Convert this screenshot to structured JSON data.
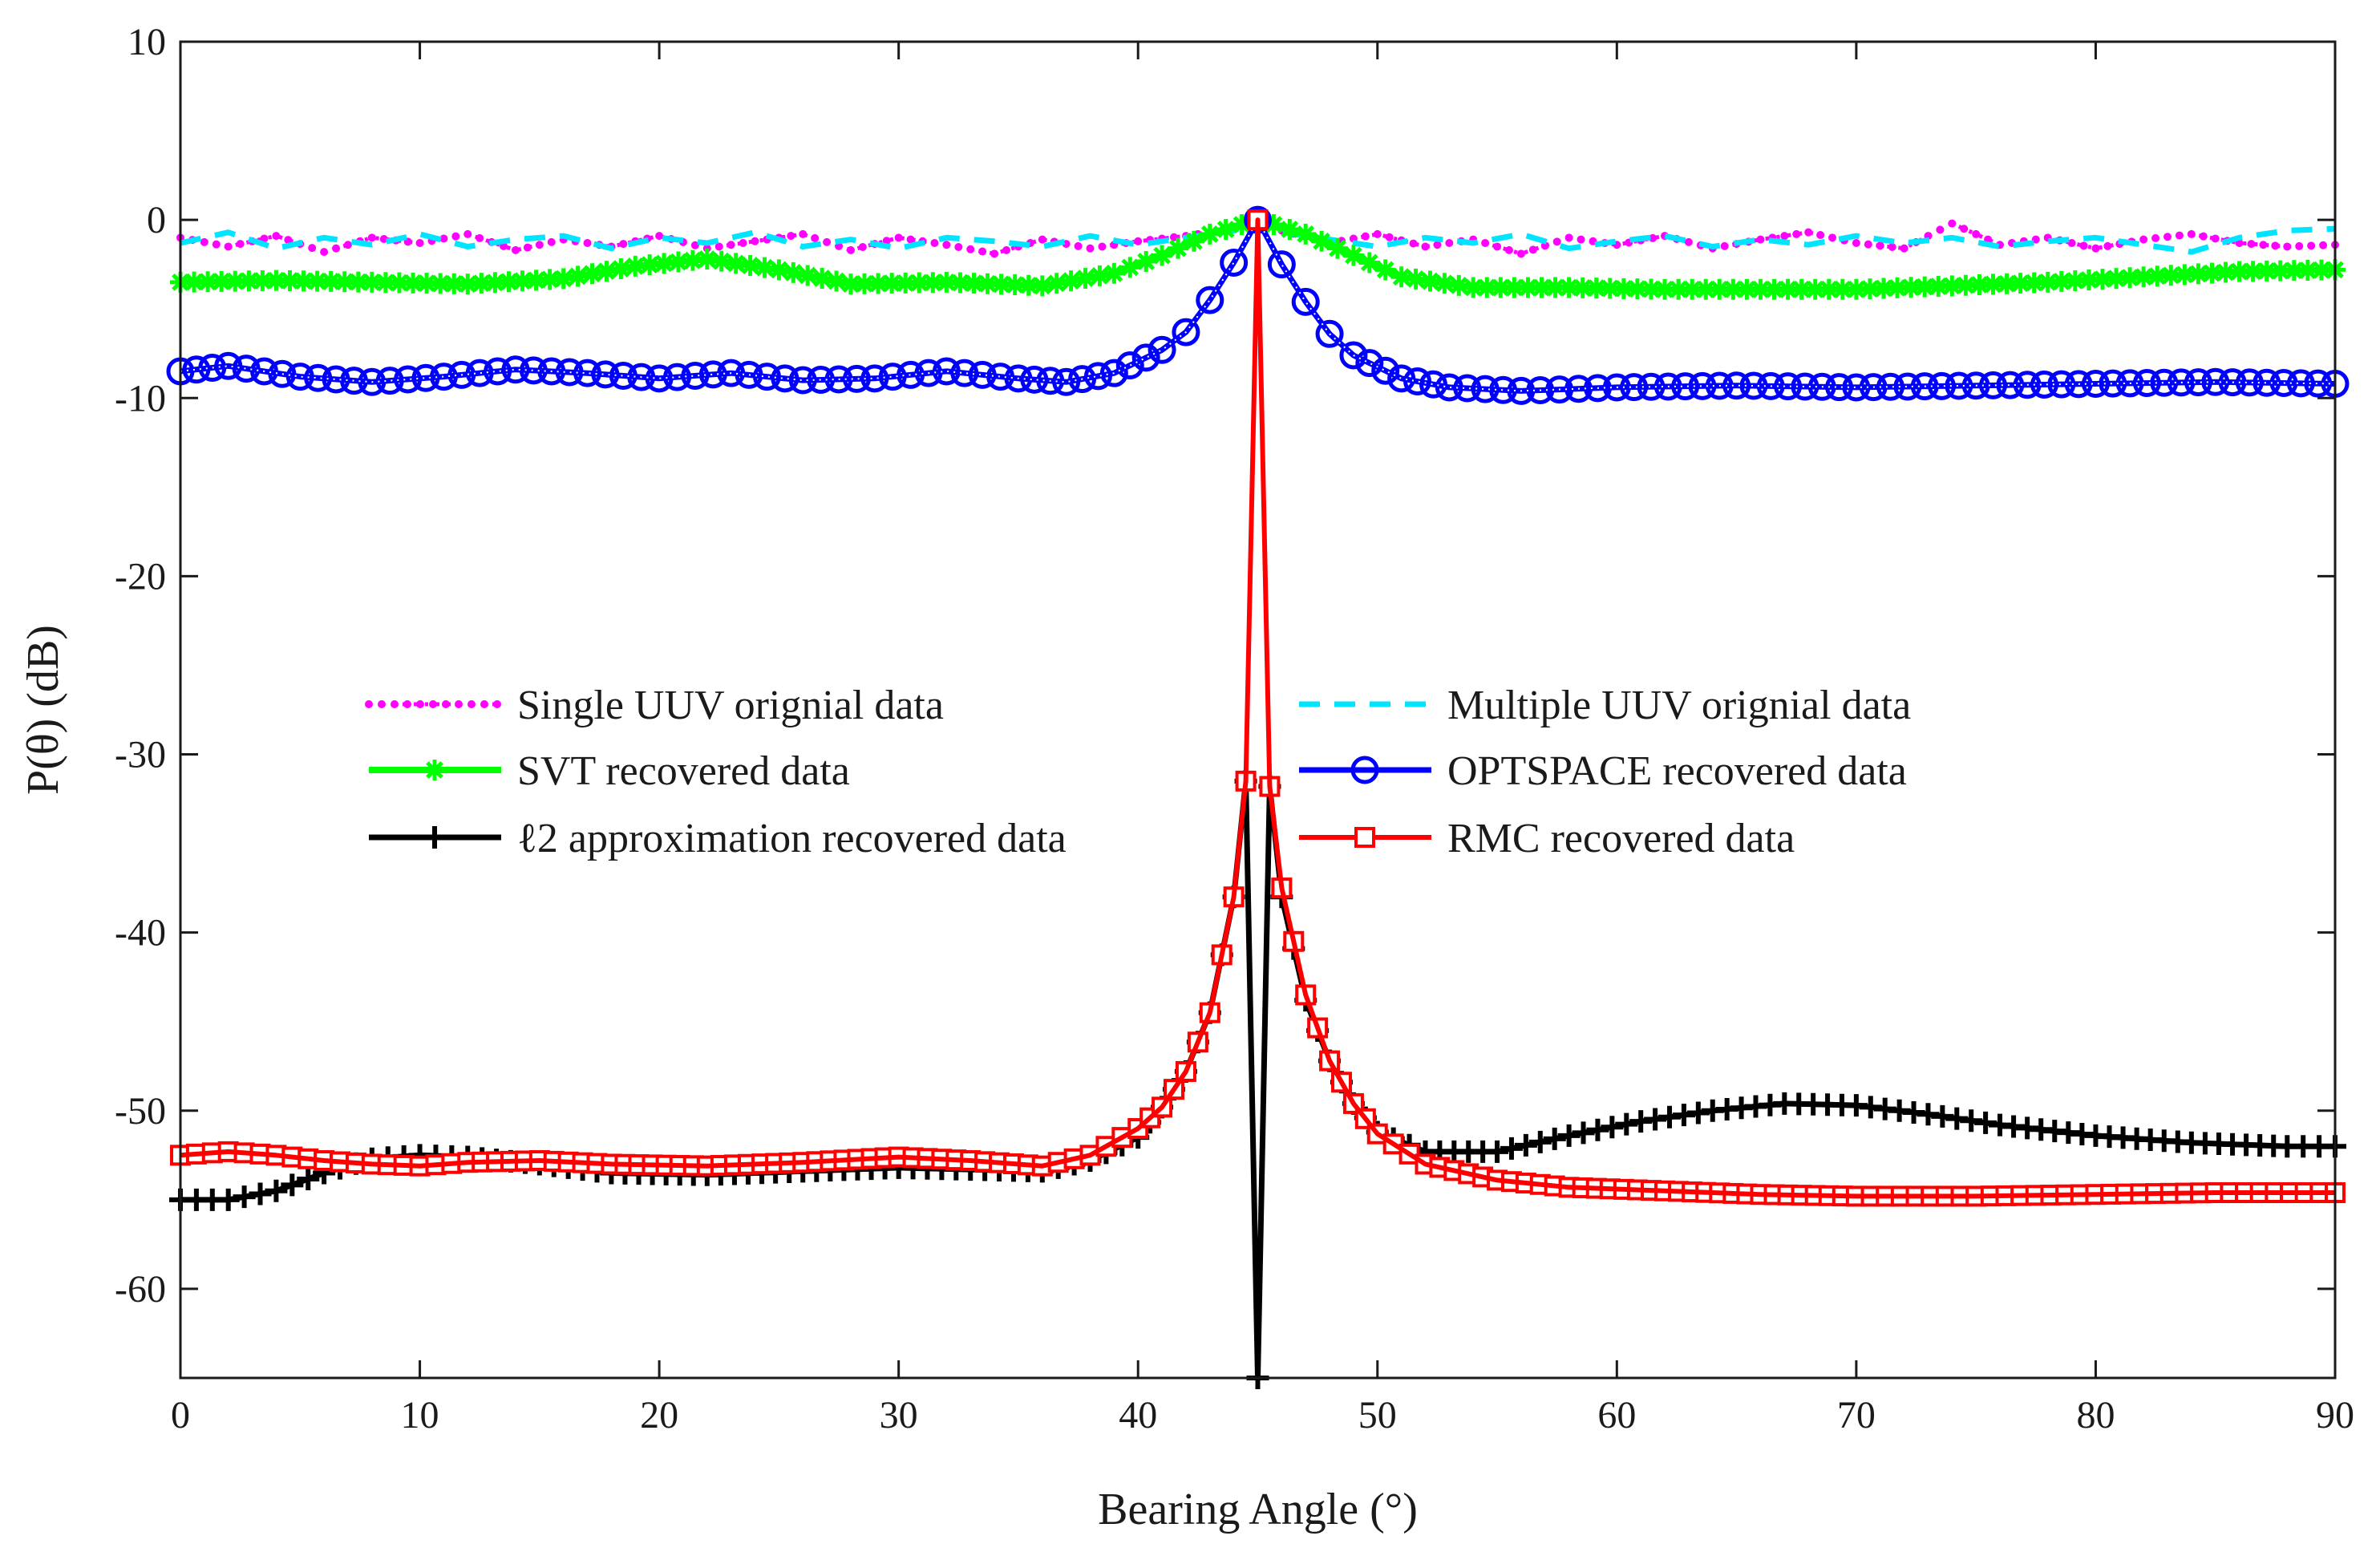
{
  "chart_data": {
    "type": "line",
    "xlabel": "Bearing Angle (°)",
    "ylabel": "P(θ) (dB)",
    "xlim": [
      0,
      90
    ],
    "ylim": [
      -65,
      10
    ],
    "xticks": [
      0,
      10,
      20,
      30,
      40,
      50,
      60,
      70,
      80,
      90
    ],
    "yticks": [
      10,
      0,
      -10,
      -20,
      -30,
      -40,
      -50,
      -60
    ],
    "grid": false,
    "legend_position": "center-left",
    "series": [
      {
        "name": "Single UUV orignial data",
        "color": "#ff00ff",
        "style": "dotted-marker",
        "x": [
          0,
          2,
          4,
          6,
          8,
          10,
          12,
          14,
          16,
          18,
          20,
          22,
          24,
          26,
          28,
          30,
          32,
          34,
          36,
          38,
          40,
          42,
          44,
          45,
          46,
          48,
          50,
          52,
          54,
          56,
          58,
          60,
          62,
          64,
          66,
          68,
          70,
          72,
          74,
          76,
          78,
          80,
          82,
          84,
          86,
          88,
          90
        ],
        "y": [
          -1.0,
          -1.5,
          -0.9,
          -1.8,
          -1.0,
          -1.3,
          -0.8,
          -1.7,
          -1.1,
          -1.5,
          -0.9,
          -1.6,
          -1.2,
          -0.8,
          -1.7,
          -1.0,
          -1.4,
          -1.9,
          -1.1,
          -1.6,
          -1.2,
          -0.9,
          -0.5,
          0.0,
          -0.6,
          -1.3,
          -0.8,
          -1.5,
          -1.1,
          -1.9,
          -1.0,
          -1.4,
          -0.9,
          -1.6,
          -1.1,
          -0.7,
          -1.3,
          -1.6,
          -0.2,
          -1.4,
          -1.0,
          -1.6,
          -1.1,
          -0.8,
          -1.3,
          -1.5,
          -1.4
        ]
      },
      {
        "name": "Multiple UUV orignial data",
        "color": "#00e5ff",
        "style": "dashed",
        "x": [
          0,
          2,
          4,
          6,
          8,
          10,
          12,
          14,
          16,
          18,
          20,
          22,
          24,
          26,
          28,
          30,
          32,
          34,
          36,
          38,
          40,
          42,
          44,
          45,
          46,
          48,
          50,
          52,
          54,
          56,
          58,
          60,
          62,
          64,
          66,
          68,
          70,
          72,
          74,
          76,
          78,
          80,
          82,
          84,
          86,
          88,
          90
        ],
        "y": [
          -1.3,
          -0.7,
          -1.6,
          -1.0,
          -1.4,
          -0.8,
          -1.5,
          -1.1,
          -0.9,
          -1.6,
          -1.0,
          -1.3,
          -0.7,
          -1.5,
          -1.1,
          -1.6,
          -1.0,
          -1.2,
          -1.5,
          -0.9,
          -1.4,
          -1.0,
          -0.6,
          0.0,
          -0.7,
          -1.1,
          -1.5,
          -1.0,
          -1.3,
          -0.8,
          -1.6,
          -1.2,
          -0.9,
          -1.5,
          -1.1,
          -1.4,
          -0.9,
          -1.3,
          -1.0,
          -1.5,
          -1.2,
          -1.0,
          -1.4,
          -1.8,
          -1.0,
          -0.6,
          -0.5
        ]
      },
      {
        "name": "SVT recovered data",
        "color": "#00ff00",
        "style": "line-asterisk",
        "x": [
          0,
          4,
          8,
          12,
          16,
          19,
          22,
          25,
          28,
          32,
          36,
          39,
          41,
          43,
          45,
          47,
          49,
          51,
          54,
          58,
          62,
          66,
          70,
          74,
          78,
          82,
          86,
          90
        ],
        "y": [
          -3.5,
          -3.4,
          -3.5,
          -3.6,
          -3.3,
          -2.6,
          -2.2,
          -2.8,
          -3.6,
          -3.5,
          -3.7,
          -3.0,
          -2.0,
          -0.8,
          0.0,
          -0.8,
          -2.0,
          -3.2,
          -3.8,
          -3.8,
          -3.9,
          -3.9,
          -3.9,
          -3.7,
          -3.5,
          -3.2,
          -2.9,
          -2.8
        ]
      },
      {
        "name": "OPTSPACE recovered data",
        "color": "#0000ff",
        "style": "line-circle",
        "x": [
          0,
          2,
          5,
          8,
          11,
          14,
          17,
          20,
          23,
          26,
          29,
          32,
          35,
          37,
          39,
          41,
          42,
          43,
          44,
          45,
          46,
          47,
          48,
          49,
          51,
          53,
          56,
          60,
          65,
          70,
          75,
          80,
          85,
          90
        ],
        "y": [
          -8.5,
          -8.2,
          -8.8,
          -9.1,
          -8.8,
          -8.4,
          -8.6,
          -8.9,
          -8.6,
          -9.0,
          -8.9,
          -8.5,
          -8.9,
          -9.1,
          -8.6,
          -7.3,
          -6.3,
          -4.5,
          -2.4,
          0.0,
          -2.5,
          -4.6,
          -6.4,
          -7.6,
          -8.9,
          -9.4,
          -9.6,
          -9.4,
          -9.3,
          -9.4,
          -9.3,
          -9.2,
          -9.1,
          -9.2
        ]
      },
      {
        "name": "ℓ2 approximation recovered data",
        "color": "#000000",
        "style": "line-plus",
        "x": [
          0,
          2,
          4,
          6,
          8,
          10,
          12,
          15,
          18,
          22,
          26,
          30,
          33,
          36,
          38,
          40,
          41,
          42,
          43,
          44,
          44.5,
          45,
          45.5,
          46,
          47,
          48,
          49,
          50,
          52,
          55,
          58,
          61,
          64,
          67,
          70,
          73,
          76,
          80,
          84,
          88,
          90
        ],
        "y": [
          -55.0,
          -55.0,
          -54.5,
          -53.5,
          -52.7,
          -52.5,
          -52.6,
          -53.0,
          -53.5,
          -53.6,
          -53.4,
          -53.2,
          -53.3,
          -53.4,
          -52.8,
          -51.5,
          -49.8,
          -47.8,
          -44.5,
          -38.0,
          -31.5,
          -65.0,
          -31.8,
          -38.0,
          -43.8,
          -47.2,
          -49.6,
          -51.2,
          -52.3,
          -52.3,
          -51.4,
          -50.6,
          -50.0,
          -49.6,
          -49.7,
          -50.2,
          -50.8,
          -51.4,
          -51.8,
          -52.0,
          -52.0
        ]
      },
      {
        "name": "RMC recovered data",
        "color": "#ff0000",
        "style": "line-square",
        "x": [
          0,
          2,
          4,
          6,
          8,
          10,
          12,
          15,
          18,
          22,
          26,
          30,
          33,
          36,
          38,
          40,
          41,
          42,
          43,
          44,
          44.5,
          45,
          45.5,
          46,
          47,
          48,
          49,
          50,
          52,
          55,
          58,
          62,
          66,
          70,
          75,
          80,
          85,
          90
        ],
        "y": [
          -52.5,
          -52.3,
          -52.5,
          -52.8,
          -53.0,
          -53.1,
          -52.9,
          -52.8,
          -53.0,
          -53.1,
          -52.9,
          -52.6,
          -52.8,
          -53.1,
          -52.5,
          -51.0,
          -49.8,
          -47.8,
          -44.5,
          -38.0,
          -31.5,
          0.0,
          -31.8,
          -37.5,
          -43.5,
          -47.2,
          -49.6,
          -51.3,
          -53.0,
          -53.9,
          -54.3,
          -54.5,
          -54.7,
          -54.8,
          -54.8,
          -54.7,
          -54.6,
          -54.6
        ]
      }
    ]
  }
}
